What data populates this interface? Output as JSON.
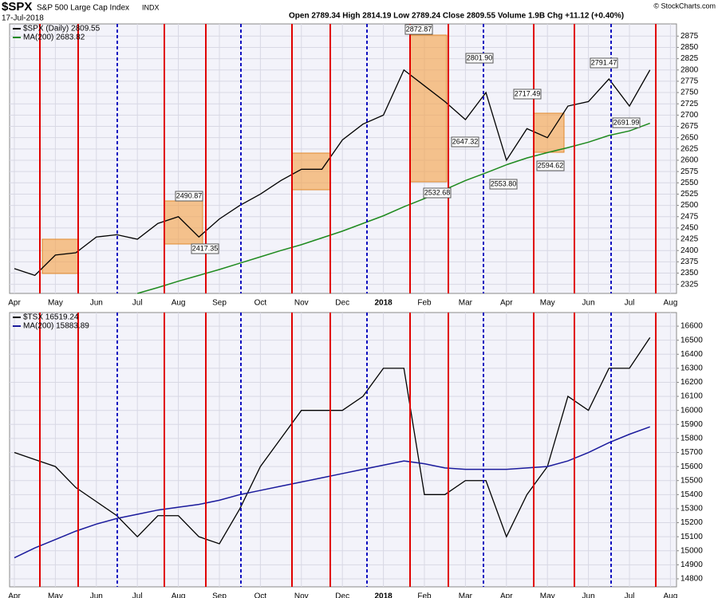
{
  "header": {
    "symbol": "$SPX",
    "name": "S&P 500 Large Cap Index",
    "exchange": "INDX",
    "date": "17-Jul-2018",
    "quote": "Open 2789.34 High 2814.19 Low 2789.24 Close 2809.55 Volume 1.9B Chg +11.12 (+0.40%)",
    "credit": "© StockCharts.com"
  },
  "chart_data": [
    {
      "type": "line",
      "grid": true,
      "legend": "top-left",
      "categories": [
        "Apr",
        null,
        "May",
        null,
        "Jun",
        null,
        "Jul",
        null,
        "Aug",
        null,
        "Sep",
        null,
        "Oct",
        null,
        "Nov",
        null,
        "Dec",
        null,
        "2018",
        null,
        "Feb",
        null,
        "Mar",
        null,
        "Apr",
        null,
        "May",
        null,
        "Jun",
        null,
        "Jul",
        null,
        "Aug"
      ],
      "series": [
        {
          "name": "$SPX (Daily) 2809.55",
          "color": "#000000",
          "values": [
            2360,
            2345,
            2390,
            2395,
            2430,
            2435,
            2425,
            2460,
            2475,
            2430,
            2470,
            2500,
            2525,
            2555,
            2580,
            2580,
            2645,
            2680,
            2700,
            2800,
            2765,
            2730,
            2690,
            2750,
            2600,
            2670,
            2650,
            2720,
            2730,
            2780,
            2720,
            2800,
            null
          ]
        },
        {
          "name": "MA(200) 2683.82",
          "color": "#1e8a1e",
          "values": [
            null,
            null,
            null,
            null,
            null,
            null,
            2305,
            2318,
            2332,
            2345,
            2358,
            2372,
            2386,
            2400,
            2413,
            2428,
            2443,
            2460,
            2477,
            2497,
            2515,
            2535,
            2555,
            2572,
            2590,
            2605,
            2617,
            2628,
            2640,
            2655,
            2665,
            2682,
            null
          ]
        }
      ],
      "ylim": [
        2305,
        2902
      ],
      "yticks": [
        2325,
        2350,
        2375,
        2400,
        2425,
        2450,
        2475,
        2500,
        2525,
        2550,
        2575,
        2600,
        2625,
        2650,
        2675,
        2700,
        2725,
        2750,
        2775,
        2800,
        2825,
        2850,
        2875
      ],
      "annotations": [
        "2490.87",
        "2417.35",
        "2872.87",
        "2532.68",
        "2801.90",
        "2647.32",
        "2553.80",
        "2717.49",
        "2594.62",
        "2791.47",
        "2691.99"
      ]
    },
    {
      "type": "line",
      "grid": true,
      "legend": "top-left",
      "categories": [
        "Apr",
        null,
        "May",
        null,
        "Jun",
        null,
        "Jul",
        null,
        "Aug",
        null,
        "Sep",
        null,
        "Oct",
        null,
        "Nov",
        null,
        "Dec",
        null,
        "2018",
        null,
        "Feb",
        null,
        "Mar",
        null,
        "Apr",
        null,
        "May",
        null,
        "Jun",
        null,
        "Jul",
        null,
        "Aug"
      ],
      "series": [
        {
          "name": "$TSX 16519.24",
          "color": "#000000",
          "values": [
            15700,
            15650,
            15600,
            15450,
            15350,
            15250,
            15100,
            15250,
            15250,
            15100,
            15050,
            15300,
            15600,
            15800,
            16000,
            16000,
            16000,
            16100,
            16300,
            16300,
            15400,
            15400,
            15500,
            15500,
            15100,
            15400,
            15600,
            16100,
            16000,
            16300,
            16300,
            16519,
            null
          ]
        },
        {
          "name": "MA(200) 15883.89",
          "color": "#1a1a9c",
          "values": [
            14950,
            15020,
            15080,
            15140,
            15190,
            15230,
            15260,
            15290,
            15310,
            15330,
            15360,
            15400,
            15430,
            15460,
            15490,
            15520,
            15550,
            15580,
            15610,
            15640,
            15620,
            15590,
            15580,
            15580,
            15580,
            15590,
            15600,
            15640,
            15700,
            15770,
            15830,
            15883,
            null
          ]
        }
      ],
      "ylim": [
        14743,
        16697
      ],
      "yticks": [
        14800,
        14900,
        15000,
        15100,
        15200,
        15300,
        15400,
        15500,
        15600,
        15700,
        15800,
        15900,
        16000,
        16100,
        16200,
        16300,
        16400,
        16500,
        16600
      ]
    }
  ]
}
